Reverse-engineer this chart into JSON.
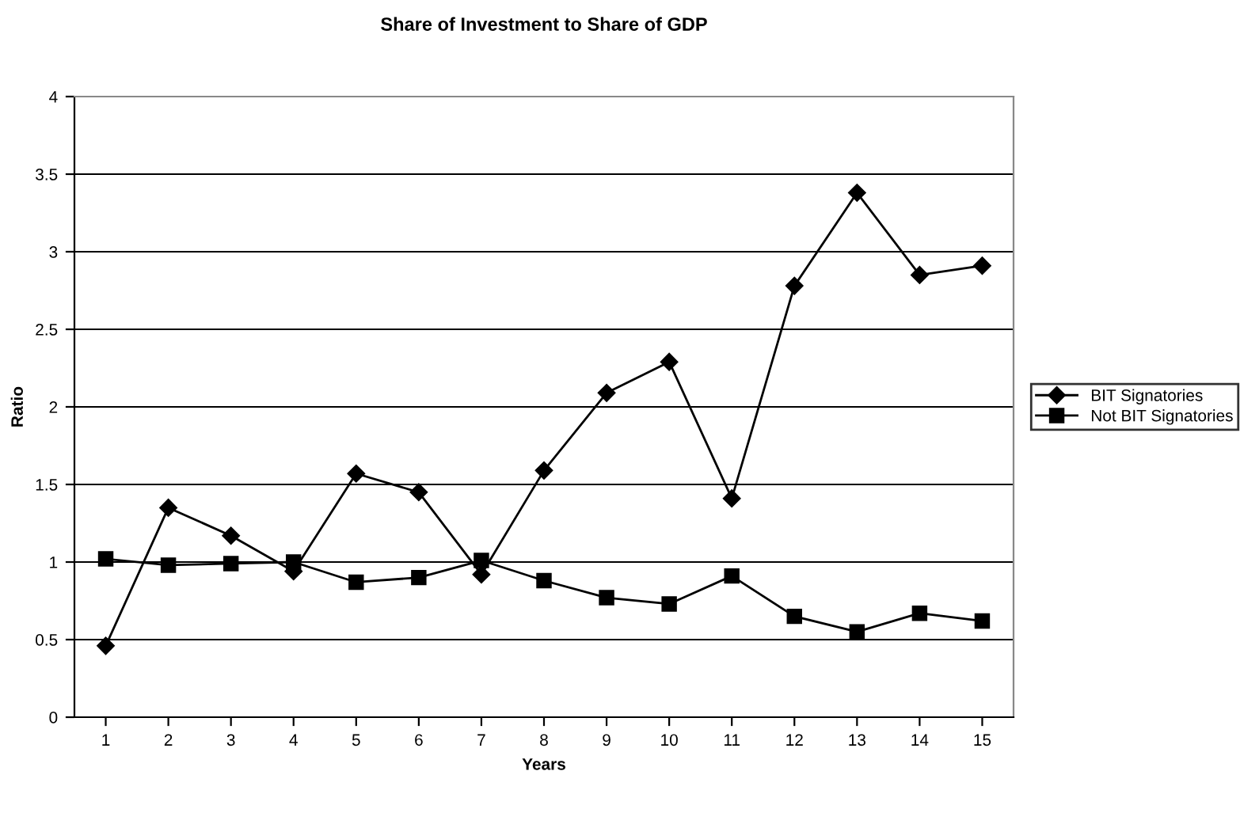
{
  "chart_data": {
    "type": "line",
    "title": "Share of Investment to Share of GDP",
    "xlabel": "Years",
    "ylabel": "Ratio",
    "categories": [
      "1",
      "2",
      "3",
      "4",
      "5",
      "6",
      "7",
      "8",
      "9",
      "10",
      "11",
      "12",
      "13",
      "14",
      "15"
    ],
    "series": [
      {
        "name": "BIT Signatories",
        "color": "#000000",
        "marker": "diamond",
        "values": [
          0.46,
          1.35,
          1.17,
          0.94,
          1.57,
          1.45,
          0.92,
          1.59,
          2.09,
          2.29,
          1.41,
          2.78,
          3.38,
          2.85,
          2.91
        ]
      },
      {
        "name": "Not BIT Signatories",
        "color": "#000000",
        "marker": "square",
        "values": [
          1.02,
          0.98,
          0.99,
          1.0,
          0.87,
          0.9,
          1.01,
          0.88,
          0.77,
          0.73,
          0.91,
          0.65,
          0.55,
          0.67,
          0.62
        ]
      }
    ],
    "ylim": [
      0,
      4
    ],
    "yticks": [
      0,
      0.5,
      1,
      1.5,
      2,
      2.5,
      3,
      3.5,
      4
    ],
    "grid": "y",
    "legend": "right",
    "line_style": "solid"
  }
}
